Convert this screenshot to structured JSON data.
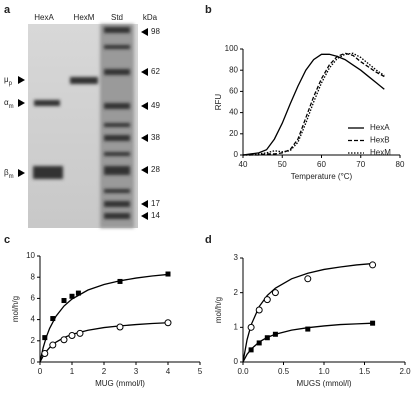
{
  "gel": {
    "panel": "a",
    "lanes": [
      "HexA",
      "HexM",
      "Std",
      "kDa"
    ],
    "markers": [
      98,
      62,
      49,
      38,
      28,
      17,
      14
    ],
    "bands": [
      {
        "symbol": "μ",
        "sub": "p"
      },
      {
        "symbol": "α",
        "sub": "m"
      },
      {
        "symbol": "β",
        "sub": "m"
      }
    ]
  },
  "chart_data": [
    {
      "type": "line",
      "panel": "b",
      "xlabel": "Temperature (°C)",
      "ylabel": "RFU",
      "x": [
        40,
        42,
        44,
        46,
        48,
        50,
        52,
        54,
        56,
        58,
        60,
        62,
        64,
        66,
        68,
        70,
        72,
        74,
        76
      ],
      "series": [
        {
          "name": "HexA",
          "color": "#000000",
          "dash": "solid",
          "values": [
            0,
            1,
            2,
            5,
            15,
            30,
            48,
            65,
            80,
            90,
            95,
            95,
            93,
            90,
            85,
            80,
            74,
            68,
            62
          ]
        },
        {
          "name": "HexB",
          "color": "#000000",
          "dash": "dashed",
          "values": [
            0,
            0,
            0,
            1,
            1,
            2,
            5,
            15,
            35,
            55,
            72,
            85,
            93,
            96,
            94,
            88,
            83,
            78,
            74
          ]
        },
        {
          "name": "HexM",
          "color": "#000000",
          "dash": "dotted",
          "values": [
            0,
            0,
            1,
            2,
            4,
            3,
            4,
            12,
            30,
            50,
            68,
            82,
            91,
            95,
            96,
            92,
            86,
            80,
            75
          ]
        }
      ],
      "xlim": [
        40,
        80
      ],
      "xticks": [
        40,
        50,
        60,
        70,
        80
      ],
      "ylim": [
        0,
        100
      ],
      "yticks": [
        0,
        20,
        40,
        60,
        80,
        100
      ],
      "legend": "lower right"
    },
    {
      "type": "scatter",
      "panel": "c",
      "xlabel": "MUG (mmol/l)",
      "ylabel": "mol/h/g",
      "series": [
        {
          "marker": "square",
          "color": "#000000",
          "x": [
            0.15,
            0.4,
            0.75,
            1.0,
            1.2,
            2.5,
            4.0
          ],
          "values": [
            2.3,
            4.1,
            5.8,
            6.2,
            6.5,
            7.6,
            8.3
          ]
        },
        {
          "marker": "open-circle",
          "color": "#000000",
          "x": [
            0.15,
            0.4,
            0.75,
            1.0,
            1.25,
            2.5,
            4.0
          ],
          "values": [
            0.8,
            1.6,
            2.1,
            2.5,
            2.7,
            3.3,
            3.7
          ]
        }
      ],
      "fit_curves": [
        {
          "x": [
            0,
            0.1,
            0.2,
            0.3,
            0.5,
            0.75,
            1,
            1.5,
            2,
            2.5,
            3,
            3.5,
            4
          ],
          "values": [
            0,
            1.36,
            2.38,
            3.17,
            4.32,
            5.28,
            5.94,
            6.79,
            7.31,
            7.66,
            7.92,
            8.11,
            8.26
          ]
        },
        {
          "x": [
            0,
            0.1,
            0.2,
            0.3,
            0.5,
            0.75,
            1,
            1.5,
            2,
            2.5,
            3,
            3.5,
            4
          ],
          "values": [
            0,
            0.57,
            1.01,
            1.36,
            1.87,
            2.3,
            2.61,
            3.0,
            3.25,
            3.41,
            3.53,
            3.63,
            3.7
          ]
        }
      ],
      "xlim": [
        0,
        5
      ],
      "xticks": [
        0,
        1,
        2,
        3,
        4,
        5
      ],
      "ylim": [
        0,
        10
      ],
      "yticks": [
        0,
        2,
        4,
        6,
        8,
        10
      ]
    },
    {
      "type": "scatter",
      "panel": "d",
      "xlabel": "MUGS (mmol/l)",
      "ylabel": "mol/h/g",
      "series": [
        {
          "marker": "open-circle",
          "color": "#000000",
          "x": [
            0.1,
            0.2,
            0.3,
            0.4,
            0.8,
            1.6
          ],
          "values": [
            1.0,
            1.5,
            1.8,
            2.0,
            2.4,
            2.8
          ]
        },
        {
          "marker": "square",
          "color": "#000000",
          "x": [
            0.1,
            0.2,
            0.3,
            0.4,
            0.8,
            1.6
          ],
          "values": [
            0.35,
            0.55,
            0.7,
            0.8,
            0.95,
            1.12
          ]
        }
      ],
      "fit_curves": [
        {
          "x": [
            0,
            0.05,
            0.1,
            0.2,
            0.3,
            0.4,
            0.6,
            0.8,
            1.0,
            1.2,
            1.4,
            1.6
          ],
          "values": [
            0,
            0.64,
            1.07,
            1.6,
            1.92,
            2.13,
            2.4,
            2.56,
            2.67,
            2.74,
            2.8,
            2.84
          ]
        },
        {
          "x": [
            0,
            0.05,
            0.1,
            0.2,
            0.3,
            0.4,
            0.6,
            0.8,
            1.0,
            1.2,
            1.4,
            1.6
          ],
          "values": [
            0,
            0.22,
            0.37,
            0.58,
            0.71,
            0.8,
            0.92,
            0.99,
            1.04,
            1.08,
            1.1,
            1.12
          ]
        }
      ],
      "xlim": [
        0,
        2
      ],
      "xticks": [
        {
          "value": 0,
          "label": "0.0"
        },
        {
          "value": 0.5,
          "label": "0.5"
        },
        {
          "value": 1,
          "label": "1.0"
        },
        {
          "value": 1.5,
          "label": "1.5"
        },
        {
          "value": 2,
          "label": "2.0"
        }
      ],
      "ylim": [
        0,
        3
      ],
      "yticks": [
        0,
        1,
        2,
        3
      ]
    }
  ]
}
